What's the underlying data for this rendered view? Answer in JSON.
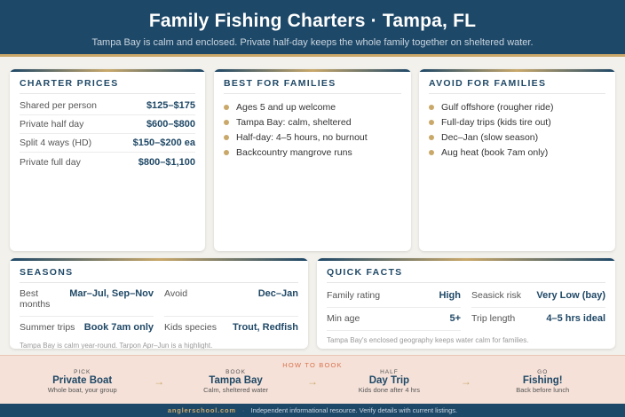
{
  "header": {
    "title": "Family Fishing Charters · Tampa, FL",
    "subtitle": "Tampa Bay is calm and enclosed. Private half-day keeps the whole family together on sheltered water."
  },
  "prices": {
    "title": "CHARTER PRICES",
    "rows": [
      {
        "label": "Shared per person",
        "value": "$125–$175"
      },
      {
        "label": "Private half day",
        "value": "$600–$800"
      },
      {
        "label": "Split 4 ways (HD)",
        "value": "$150–$200 ea"
      },
      {
        "label": "Private full day",
        "value": "$800–$1,100"
      }
    ]
  },
  "best": {
    "title": "BEST FOR FAMILIES",
    "items": [
      "Ages 5 and up welcome",
      "Tampa Bay: calm, sheltered",
      "Half-day: 4–5 hours, no burnout",
      "Backcountry mangrove runs"
    ]
  },
  "avoid": {
    "title": "AVOID FOR FAMILIES",
    "items": [
      "Gulf offshore (rougher ride)",
      "Full-day trips (kids tire out)",
      "Dec–Jan (slow season)",
      "Aug heat (book 7am only)"
    ]
  },
  "seasons": {
    "title": "SEASONS",
    "cells": [
      {
        "label": "Best months",
        "value": "Mar–Jul, Sep–Nov"
      },
      {
        "label": "Avoid",
        "value": "Dec–Jan"
      },
      {
        "label": "Summer trips",
        "value": "Book 7am only"
      },
      {
        "label": "Kids species",
        "value": "Trout, Redfish"
      }
    ],
    "note": "Tampa Bay is calm year-round. Tarpon Apr–Jun is a highlight."
  },
  "facts": {
    "title": "QUICK FACTS",
    "cells": [
      {
        "label": "Family rating",
        "value": "High"
      },
      {
        "label": "Seasick risk",
        "value": "Very Low (bay)"
      },
      {
        "label": "Min age",
        "value": "5+"
      },
      {
        "label": "Trip length",
        "value": "4–5 hrs ideal"
      }
    ],
    "note": "Tampa Bay's enclosed geography keeps water calm for families."
  },
  "howto": {
    "title": "HOW TO BOOK",
    "arrow": "→",
    "steps": [
      {
        "small": "PICK",
        "big": "Private Boat",
        "desc": "Whole boat, your group"
      },
      {
        "small": "BOOK",
        "big": "Tampa Bay",
        "desc": "Calm, sheltered water"
      },
      {
        "small": "HALF",
        "big": "Day Trip",
        "desc": "Kids done after 4 hrs"
      },
      {
        "small": "GO",
        "big": "Fishing!",
        "desc": "Back before lunch"
      }
    ]
  },
  "footer": {
    "brand": "anglerschool.com",
    "sep": "·",
    "text": "Independent informational resource. Verify details with current listings."
  }
}
